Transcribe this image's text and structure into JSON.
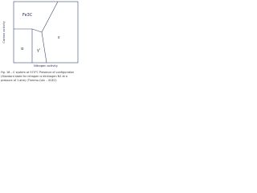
{
  "diagram": {
    "y_axis_label": "Carbon activity",
    "x_axis_label": "Nitrogen activity",
    "regions": [
      "Fe3C",
      "ε",
      "α",
      "γ'"
    ],
    "caption": [
      "Fig. 18 – C system at 570°C Presence of configuration",
      "(Standard state for nitrogen is dinitrogen N2 at a",
      "pressure of 1 atm) (Thermo-Calc – SGE2)"
    ]
  }
}
